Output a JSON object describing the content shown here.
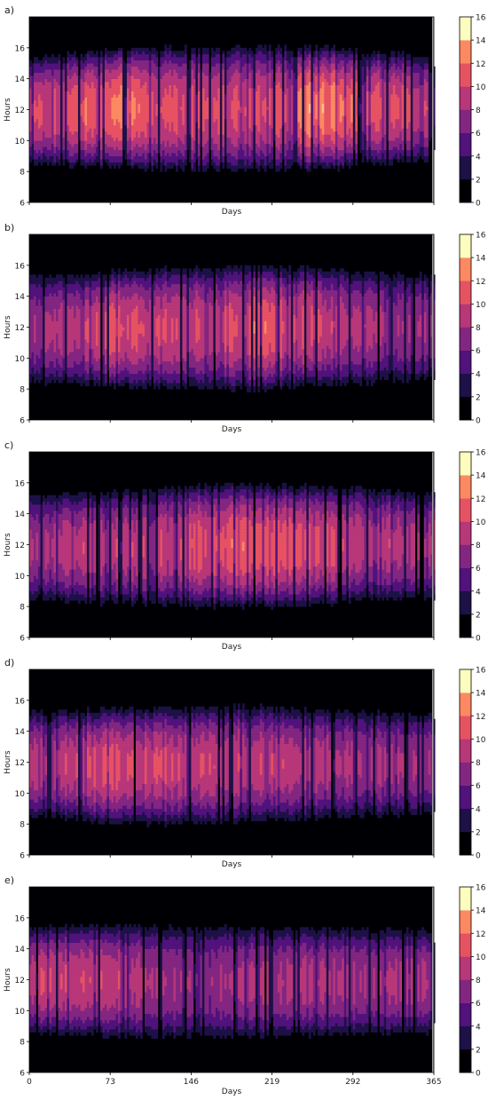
{
  "chart_data": [
    {
      "type": "heatmap",
      "panel_label": "a)",
      "xlabel": "Days",
      "ylabel": "Hours",
      "xlim": [
        0,
        365
      ],
      "ylim": [
        6,
        18
      ],
      "yticks": [
        "6",
        "8",
        "10",
        "12",
        "14",
        "16"
      ],
      "xticks": [],
      "colorbar_ticks": [
        "0",
        "2",
        "4",
        "6",
        "8",
        "10",
        "12",
        "14",
        "16"
      ],
      "colorbar_range": [
        0,
        16
      ],
      "peak": [
        {
          "day": 0,
          "value": 10
        },
        {
          "day": 73,
          "value": 13
        },
        {
          "day": 146,
          "value": 11
        },
        {
          "day": 219,
          "value": 11
        },
        {
          "day": 260,
          "value": 14
        },
        {
          "day": 292,
          "value": 12
        },
        {
          "day": 365,
          "value": 10
        }
      ],
      "daylight": {
        "sunrise": [
          8.3,
          8.0,
          7.8,
          8.0,
          8.6
        ],
        "sunset": [
          15.6,
          16.2,
          16.3,
          16.2,
          15.6
        ]
      }
    },
    {
      "type": "heatmap",
      "panel_label": "b)",
      "xlabel": "Days",
      "ylabel": "Hours",
      "xlim": [
        0,
        365
      ],
      "ylim": [
        6,
        18
      ],
      "yticks": [
        "6",
        "8",
        "10",
        "12",
        "14",
        "16"
      ],
      "xticks": [],
      "colorbar_ticks": [
        "0",
        "2",
        "4",
        "6",
        "8",
        "10",
        "12",
        "14",
        "16"
      ],
      "colorbar_range": [
        0,
        16
      ],
      "peak": [
        {
          "day": 0,
          "value": 8
        },
        {
          "day": 73,
          "value": 11
        },
        {
          "day": 146,
          "value": 10
        },
        {
          "day": 219,
          "value": 12
        },
        {
          "day": 292,
          "value": 9
        },
        {
          "day": 365,
          "value": 8
        }
      ],
      "daylight": {
        "sunrise": [
          8.2,
          7.9,
          7.7,
          8.0,
          8.4
        ],
        "sunset": [
          15.6,
          15.9,
          16.2,
          16.0,
          15.6
        ]
      }
    },
    {
      "type": "heatmap",
      "panel_label": "c)",
      "xlabel": "Days",
      "ylabel": "Hours",
      "xlim": [
        0,
        365
      ],
      "ylim": [
        6,
        18
      ],
      "yticks": [
        "6",
        "8",
        "10",
        "12",
        "14",
        "16"
      ],
      "xticks": [],
      "colorbar_ticks": [
        "0",
        "2",
        "4",
        "6",
        "8",
        "10",
        "12",
        "14",
        "16"
      ],
      "colorbar_range": [
        0,
        16
      ],
      "peak": [
        {
          "day": 0,
          "value": 9
        },
        {
          "day": 73,
          "value": 10
        },
        {
          "day": 146,
          "value": 11
        },
        {
          "day": 219,
          "value": 12
        },
        {
          "day": 292,
          "value": 10
        },
        {
          "day": 365,
          "value": 9
        }
      ],
      "daylight": {
        "sunrise": [
          8.2,
          7.9,
          7.7,
          8.0,
          8.3
        ],
        "sunset": [
          15.5,
          15.8,
          16.1,
          16.0,
          15.6
        ]
      }
    },
    {
      "type": "heatmap",
      "panel_label": "d)",
      "xlabel": "Days",
      "ylabel": "Hours",
      "xlim": [
        0,
        365
      ],
      "ylim": [
        6,
        18
      ],
      "yticks": [
        "6",
        "8",
        "10",
        "12",
        "14",
        "16"
      ],
      "xticks": [],
      "colorbar_ticks": [
        "0",
        "2",
        "4",
        "6",
        "8",
        "10",
        "12",
        "14",
        "16"
      ],
      "colorbar_range": [
        0,
        16
      ],
      "peak": [
        {
          "day": 0,
          "value": 9
        },
        {
          "day": 73,
          "value": 11
        },
        {
          "day": 146,
          "value": 10
        },
        {
          "day": 219,
          "value": 10
        },
        {
          "day": 292,
          "value": 9
        },
        {
          "day": 365,
          "value": 8
        }
      ],
      "daylight": {
        "sunrise": [
          8.2,
          7.8,
          7.8,
          8.2,
          8.4
        ],
        "sunset": [
          15.5,
          15.7,
          15.9,
          15.6,
          15.4
        ]
      }
    },
    {
      "type": "heatmap",
      "panel_label": "e)",
      "xlabel": "Days",
      "ylabel": "Hours",
      "xlim": [
        0,
        365
      ],
      "ylim": [
        6,
        18
      ],
      "yticks": [
        "6",
        "8",
        "10",
        "12",
        "14",
        "16"
      ],
      "xticks": [
        "0",
        "73",
        "146",
        "219",
        "292",
        "365"
      ],
      "colorbar_ticks": [
        "0",
        "2",
        "4",
        "6",
        "8",
        "10",
        "12",
        "14",
        "16"
      ],
      "colorbar_range": [
        0,
        16
      ],
      "peak": [
        {
          "day": 0,
          "value": 10
        },
        {
          "day": 73,
          "value": 10
        },
        {
          "day": 146,
          "value": 8
        },
        {
          "day": 219,
          "value": 9
        },
        {
          "day": 292,
          "value": 9
        },
        {
          "day": 365,
          "value": 9
        }
      ],
      "daylight": {
        "sunrise": [
          8.4,
          8.0,
          8.0,
          8.1,
          8.3
        ],
        "sunset": [
          15.6,
          15.8,
          15.7,
          15.6,
          15.5
        ]
      }
    }
  ],
  "colormap": [
    "#000004",
    "#1d1147",
    "#51127c",
    "#822681",
    "#b73779",
    "#e75263",
    "#fc8961",
    "#fec488",
    "#fcfdbf"
  ]
}
